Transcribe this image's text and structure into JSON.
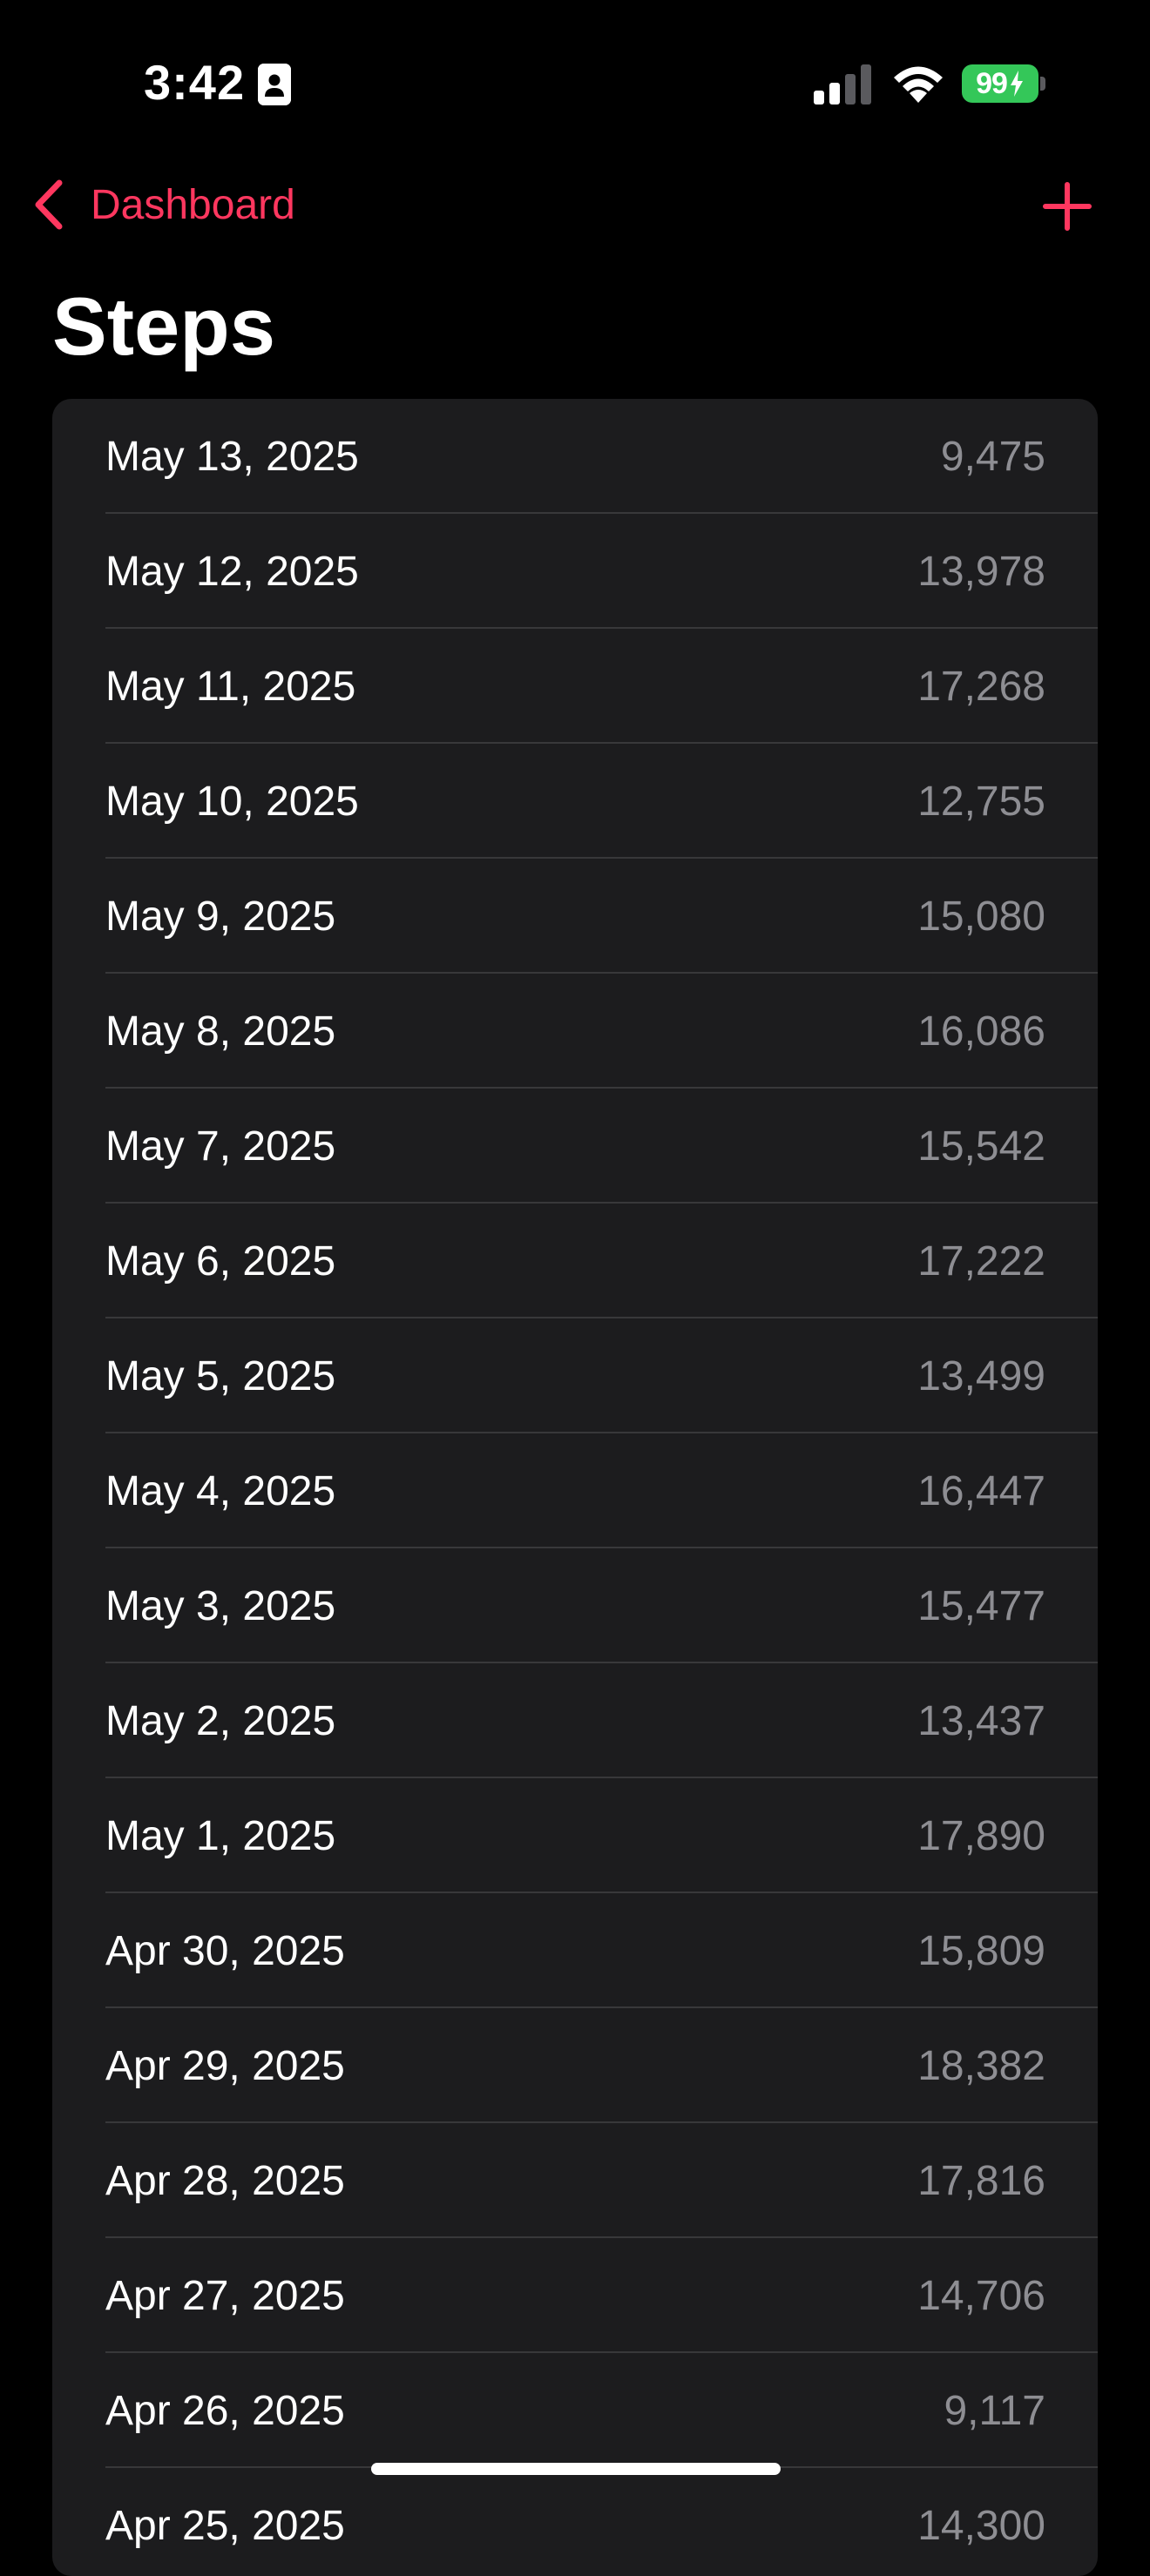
{
  "status_bar": {
    "time": "3:42",
    "battery": "99"
  },
  "nav": {
    "back_label": "Dashboard"
  },
  "title": "Steps",
  "accent_color": "#ff375f",
  "rows": [
    {
      "date": "May 13, 2025",
      "value": "9,475"
    },
    {
      "date": "May 12, 2025",
      "value": "13,978"
    },
    {
      "date": "May 11, 2025",
      "value": "17,268"
    },
    {
      "date": "May 10, 2025",
      "value": "12,755"
    },
    {
      "date": "May 9, 2025",
      "value": "15,080"
    },
    {
      "date": "May 8, 2025",
      "value": "16,086"
    },
    {
      "date": "May 7, 2025",
      "value": "15,542"
    },
    {
      "date": "May 6, 2025",
      "value": "17,222"
    },
    {
      "date": "May 5, 2025",
      "value": "13,499"
    },
    {
      "date": "May 4, 2025",
      "value": "16,447"
    },
    {
      "date": "May 3, 2025",
      "value": "15,477"
    },
    {
      "date": "May 2, 2025",
      "value": "13,437"
    },
    {
      "date": "May 1, 2025",
      "value": "17,890"
    },
    {
      "date": "Apr 30, 2025",
      "value": "15,809"
    },
    {
      "date": "Apr 29, 2025",
      "value": "18,382"
    },
    {
      "date": "Apr 28, 2025",
      "value": "17,816"
    },
    {
      "date": "Apr 27, 2025",
      "value": "14,706"
    },
    {
      "date": "Apr 26, 2025",
      "value": "9,117"
    },
    {
      "date": "Apr 25, 2025",
      "value": "14,300"
    }
  ]
}
